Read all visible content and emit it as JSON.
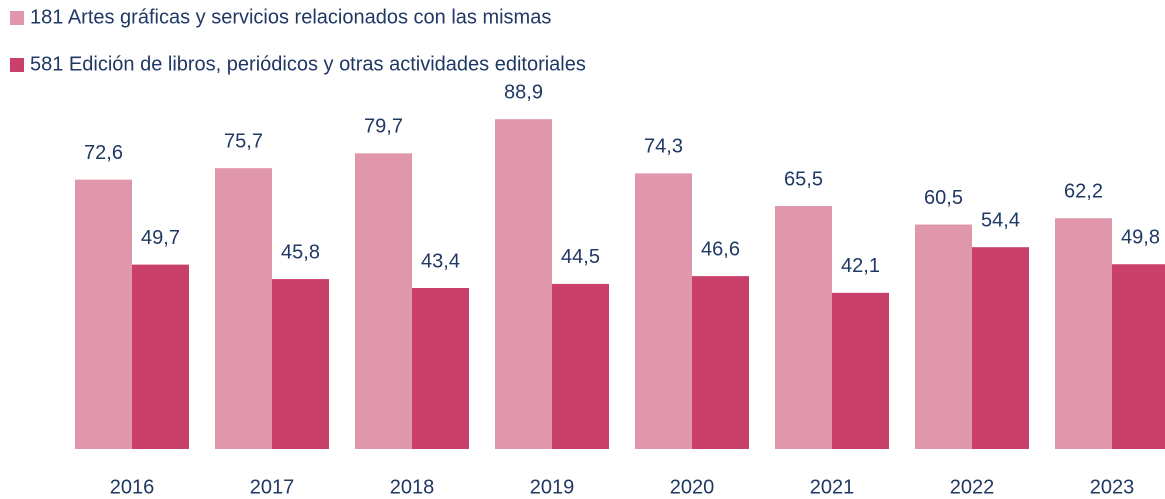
{
  "chart_data": {
    "type": "bar",
    "categories": [
      "2016",
      "2017",
      "2018",
      "2019",
      "2020",
      "2021",
      "2022",
      "2023"
    ],
    "series": [
      {
        "name": "181 Artes gráficas y servicios relacionados con las mismas",
        "color": "#e096ab",
        "values": [
          72.6,
          75.7,
          79.7,
          88.9,
          74.3,
          65.5,
          60.5,
          62.2
        ],
        "value_labels": [
          "72,6",
          "75,7",
          "79,7",
          "88,9",
          "74,3",
          "65,5",
          "60,5",
          "62,2"
        ]
      },
      {
        "name": "581 Edición de libros, periódicos y otras actividades editoriales",
        "color": "#c9406a",
        "values": [
          49.7,
          45.8,
          43.4,
          44.5,
          46.6,
          42.1,
          54.4,
          49.8
        ],
        "value_labels": [
          "49,7",
          "45,8",
          "43,4",
          "44,5",
          "46,6",
          "42,1",
          "54,4",
          "49,8"
        ]
      }
    ]
  }
}
